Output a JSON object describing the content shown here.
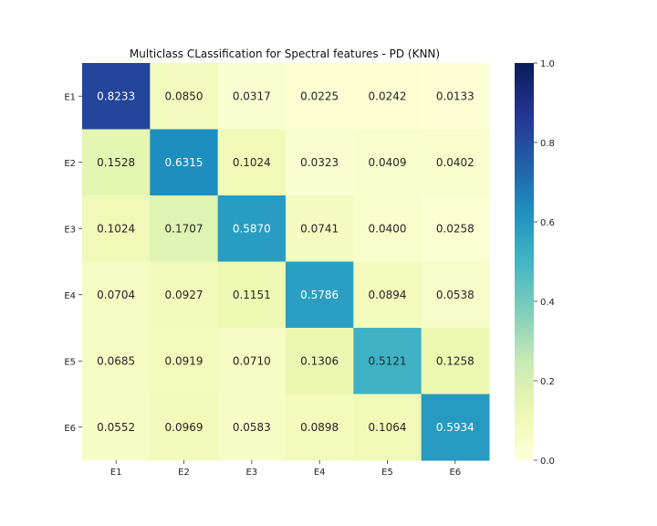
{
  "chart_data": {
    "type": "heatmap",
    "title": "Multiclass CLassification for Spectral features - PD (KNN)",
    "xlabel": "",
    "ylabel": "",
    "x_categories": [
      "E1",
      "E2",
      "E3",
      "E4",
      "E5",
      "E6"
    ],
    "y_categories": [
      "E1",
      "E2",
      "E3",
      "E4",
      "E5",
      "E6"
    ],
    "values": [
      [
        0.8233,
        0.085,
        0.0317,
        0.0225,
        0.0242,
        0.0133
      ],
      [
        0.1528,
        0.6315,
        0.1024,
        0.0323,
        0.0409,
        0.0402
      ],
      [
        0.1024,
        0.1707,
        0.587,
        0.0741,
        0.04,
        0.0258
      ],
      [
        0.0704,
        0.0927,
        0.1151,
        0.5786,
        0.0894,
        0.0538
      ],
      [
        0.0685,
        0.0919,
        0.071,
        0.1306,
        0.5121,
        0.1258
      ],
      [
        0.0552,
        0.0969,
        0.0583,
        0.0898,
        0.1064,
        0.5934
      ]
    ],
    "value_format": "4 decimals",
    "colormap": "YlGnBu",
    "color_range": [
      0.0,
      1.0
    ],
    "colorbar_ticks": [
      "0.0",
      "0.2",
      "0.4",
      "0.6",
      "0.8",
      "1.0"
    ],
    "grid": false,
    "legend": "colorbar-right"
  }
}
